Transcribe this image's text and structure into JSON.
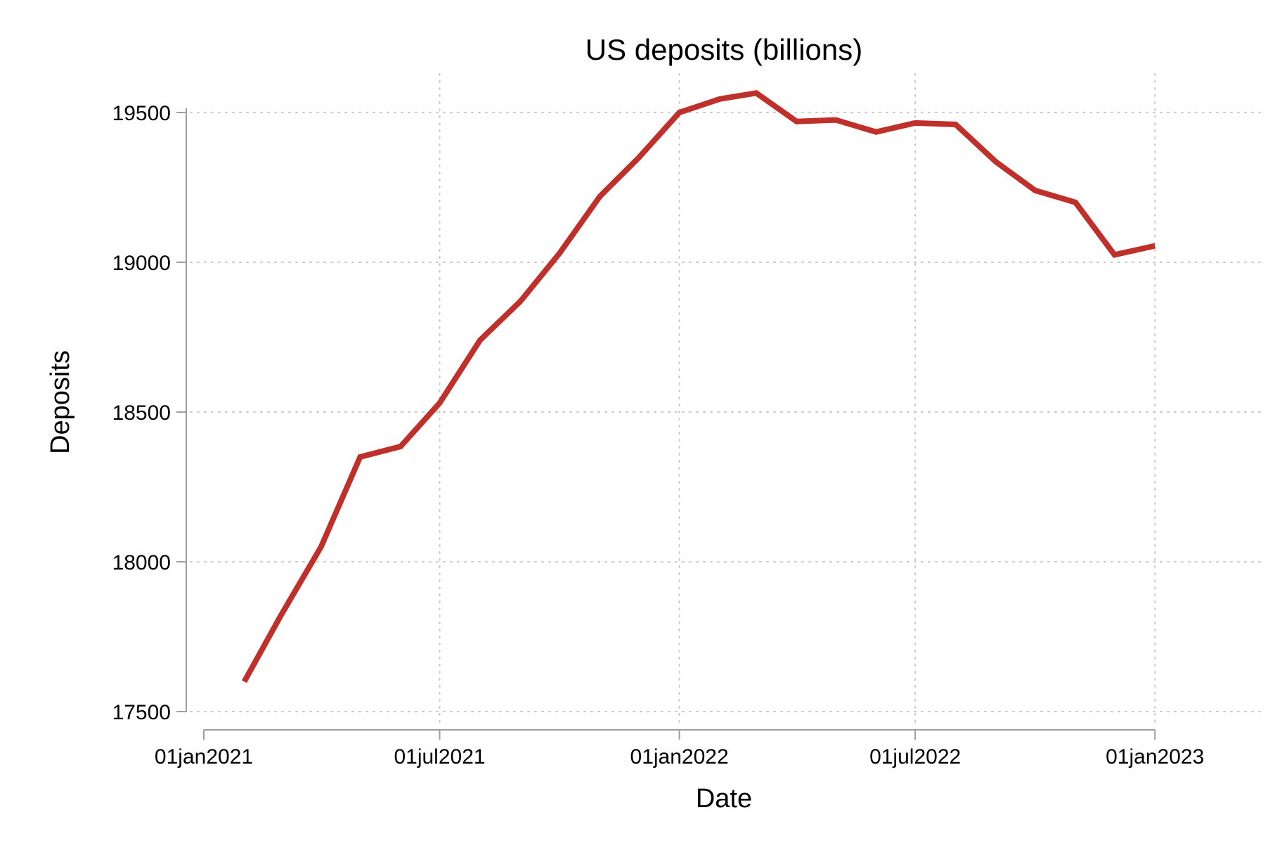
{
  "chart_data": {
    "type": "line",
    "title": "US deposits (billions)",
    "xlabel": "Date",
    "ylabel": "Deposits",
    "x_tick_labels": [
      "01jan2021",
      "01jul2021",
      "01jan2022",
      "01jul2022",
      "01jan2023"
    ],
    "x_tick_dates": [
      "2021-01-01",
      "2021-07-01",
      "2022-01-01",
      "2022-07-01",
      "2023-01-01"
    ],
    "y_ticks": [
      17500,
      18000,
      18500,
      19000,
      19500
    ],
    "xlim": [
      "2021-01-01",
      "2023-04-15"
    ],
    "ylim": [
      17500,
      19500
    ],
    "grid": true,
    "legend": "none",
    "colors": {
      "series": "#c0302a",
      "axis": "#9e9e9e",
      "grid": "#c8c8c8"
    },
    "series": [
      {
        "x": [
          "2021-02-01",
          "2021-03-01",
          "2021-04-01",
          "2021-05-01",
          "2021-06-01",
          "2021-07-01",
          "2021-08-01",
          "2021-09-01",
          "2021-10-01",
          "2021-11-01",
          "2021-12-01",
          "2022-01-01",
          "2022-02-01",
          "2022-03-01",
          "2022-04-01",
          "2022-05-01",
          "2022-06-01",
          "2022-07-01",
          "2022-08-01",
          "2022-09-01",
          "2022-10-01",
          "2022-11-01",
          "2022-12-01",
          "2023-01-01"
        ],
        "values": [
          17600,
          17820,
          18050,
          18350,
          18385,
          18530,
          18740,
          18870,
          19030,
          19220,
          19350,
          19500,
          19545,
          19565,
          19470,
          19475,
          19435,
          19465,
          19460,
          19335,
          19240,
          19200,
          19025,
          19055
        ]
      }
    ]
  }
}
